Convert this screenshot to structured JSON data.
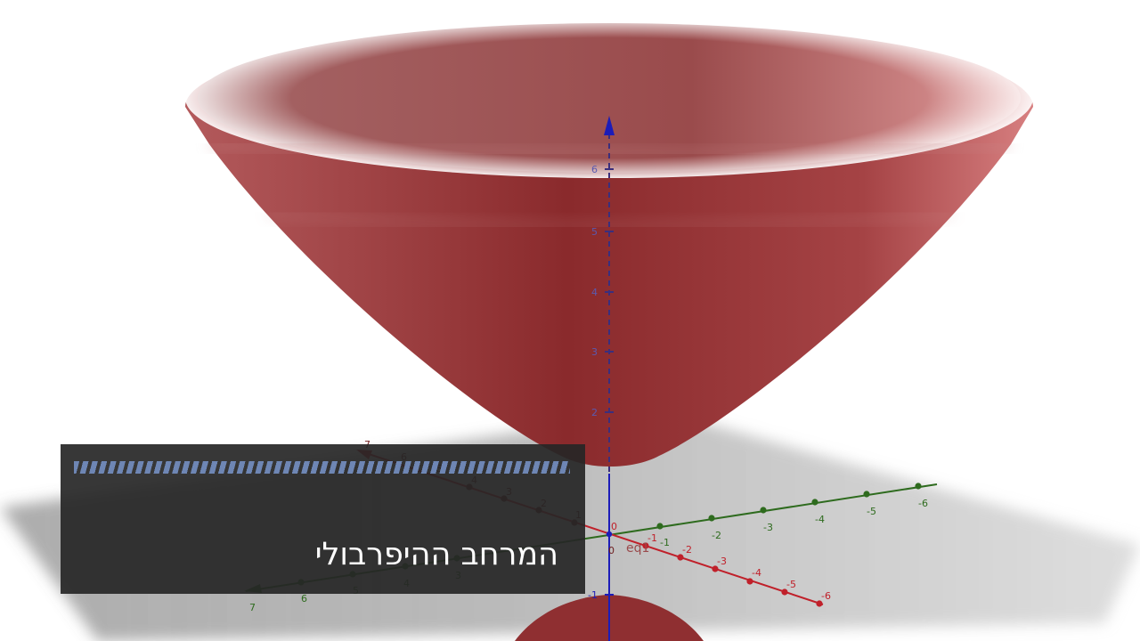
{
  "slide": {
    "title": "המרחב ההיפרבולי"
  },
  "graph": {
    "surface_label": "eq1",
    "origin_label": "0",
    "colors": {
      "surface": "#8c2a2c",
      "x_axis": "#c0202a",
      "y_axis": "#2e6b1e",
      "z_axis": "#1c1cb8",
      "caption_bg": "#262626",
      "caption_stripe": "#6e86b4"
    },
    "z_ticks": [
      "6",
      "5",
      "4",
      "3",
      "2",
      "-1"
    ],
    "x_ticks": [
      "7",
      "6",
      "5",
      "4",
      "3",
      "2",
      "1",
      "-1",
      "-2",
      "-3",
      "-4",
      "-5",
      "-6"
    ],
    "y_ticks": [
      "7",
      "6",
      "5",
      "4",
      "3",
      "-1",
      "-2",
      "-3",
      "-4",
      "-5",
      "-6"
    ]
  }
}
